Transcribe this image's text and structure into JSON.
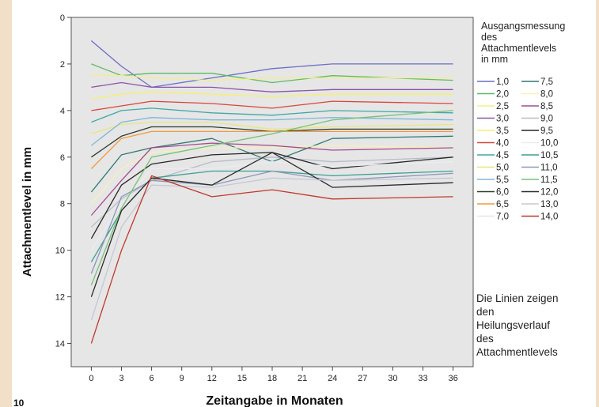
{
  "chart_data": {
    "type": "line",
    "xlabel": "Zeitangabe in Monaten",
    "ylabel": "Attachmentlevel in mm",
    "x": [
      0,
      3,
      6,
      12,
      18,
      24,
      36
    ],
    "xticks": [
      "0",
      "3",
      "6",
      "9",
      "12",
      "15",
      "18",
      "21",
      "24",
      "27",
      "30",
      "33",
      "36"
    ],
    "yticks": [
      "0",
      "2",
      "4",
      "6",
      "8",
      "10",
      "12",
      "14"
    ],
    "xlim": [
      -2,
      38
    ],
    "ylim": [
      0,
      15
    ],
    "y_inverted": true,
    "grid": false,
    "legend": {
      "title": "Ausgangsmessung des Attachmentlevels in mm",
      "title_lines": [
        "Ausgangsmessung",
        "des",
        "Attachmentlevels",
        "in mm"
      ],
      "position": "right"
    },
    "series": [
      {
        "name": "1,0",
        "color": "#6b6fc4",
        "values": [
          1.0,
          2.1,
          3.0,
          2.6,
          2.2,
          2.0,
          2.0
        ]
      },
      {
        "name": "2,0",
        "color": "#5dbb63",
        "values": [
          2.0,
          2.5,
          2.4,
          2.4,
          2.8,
          2.5,
          2.7
        ]
      },
      {
        "name": "2,5",
        "color": "#f3ee8a",
        "values": [
          2.5,
          2.5,
          2.6,
          2.7,
          2.6,
          2.6,
          2.6
        ]
      },
      {
        "name": "3,0",
        "color": "#8a55a8",
        "values": [
          3.0,
          2.8,
          3.0,
          3.0,
          3.2,
          3.1,
          3.1
        ]
      },
      {
        "name": "3,5",
        "color": "#f6f06e",
        "values": [
          3.5,
          3.3,
          3.2,
          3.3,
          3.4,
          3.3,
          3.3
        ]
      },
      {
        "name": "4,0",
        "color": "#d9463a",
        "values": [
          4.0,
          3.8,
          3.6,
          3.7,
          3.9,
          3.6,
          3.7
        ]
      },
      {
        "name": "4,5",
        "color": "#3fa9a6",
        "values": [
          4.5,
          4.0,
          3.9,
          4.1,
          4.2,
          4.0,
          4.1
        ]
      },
      {
        "name": "5,0",
        "color": "#e8e67e",
        "values": [
          5.0,
          4.6,
          4.5,
          4.5,
          4.8,
          4.7,
          4.6
        ]
      },
      {
        "name": "5,5",
        "color": "#7fb7d8",
        "values": [
          5.5,
          4.5,
          4.3,
          4.4,
          4.4,
          4.3,
          4.4
        ]
      },
      {
        "name": "6,0",
        "color": "#2d3b2d",
        "values": [
          6.0,
          5.1,
          4.7,
          4.7,
          4.9,
          4.8,
          4.8
        ]
      },
      {
        "name": "6,5",
        "color": "#f29a3a",
        "values": [
          6.5,
          5.2,
          4.9,
          4.9,
          4.9,
          4.9,
          4.9
        ]
      },
      {
        "name": "7,0",
        "color": "#e6e6e6",
        "values": [
          7.0,
          5.5,
          5.0,
          5.1,
          5.2,
          5.1,
          5.2
        ]
      },
      {
        "name": "7,5",
        "color": "#2e7a70",
        "values": [
          7.5,
          5.9,
          5.6,
          5.2,
          6.2,
          5.2,
          5.1
        ]
      },
      {
        "name": "8,0",
        "color": "#f8f0b5",
        "values": [
          8.0,
          6.5,
          5.8,
          5.6,
          5.6,
          5.5,
          5.6
        ]
      },
      {
        "name": "8,5",
        "color": "#a64a8e",
        "values": [
          8.5,
          7.0,
          5.6,
          5.4,
          5.5,
          5.7,
          5.6
        ]
      },
      {
        "name": "9,0",
        "color": "#b8bcc7",
        "values": [
          9.0,
          7.8,
          7.0,
          6.2,
          6.0,
          6.2,
          6.0
        ]
      },
      {
        "name": "9,5",
        "color": "#262626",
        "values": [
          9.5,
          7.2,
          6.3,
          5.9,
          5.8,
          6.5,
          6.0
        ]
      },
      {
        "name": "10,0",
        "color": "#e9ecf4",
        "values": [
          10.0,
          8.0,
          6.5,
          6.5,
          6.2,
          6.4,
          6.2
        ]
      },
      {
        "name": "10,5",
        "color": "#3d9e94",
        "values": [
          10.5,
          8.3,
          6.9,
          6.6,
          6.6,
          6.8,
          6.6
        ]
      },
      {
        "name": "11,0",
        "color": "#8c97b8",
        "values": [
          11.0,
          7.7,
          7.0,
          7.2,
          6.6,
          7.0,
          6.7
        ]
      },
      {
        "name": "11,5",
        "color": "#74c276",
        "values": [
          11.5,
          8.2,
          6.0,
          5.5,
          5.0,
          4.4,
          4.0
        ]
      },
      {
        "name": "12,0",
        "color": "#2b2b2b",
        "values": [
          12.0,
          8.3,
          6.9,
          7.2,
          5.8,
          7.3,
          7.1
        ]
      },
      {
        "name": "13,0",
        "color": "#c5c8d6",
        "values": [
          13.0,
          9.0,
          7.2,
          7.3,
          6.9,
          7.0,
          6.9
        ]
      },
      {
        "name": "14,0",
        "color": "#c0392b",
        "values": [
          14.0,
          10.0,
          6.8,
          7.7,
          7.4,
          7.8,
          7.7
        ]
      }
    ],
    "note": "Die Linien zeigen den Heilungsverlauf des Attachmentlevels",
    "note_lines": [
      "Die Linien zeigen",
      "den",
      "Heilungsverlauf",
      "des",
      "Attachmentlevels"
    ]
  },
  "page_number": "10"
}
